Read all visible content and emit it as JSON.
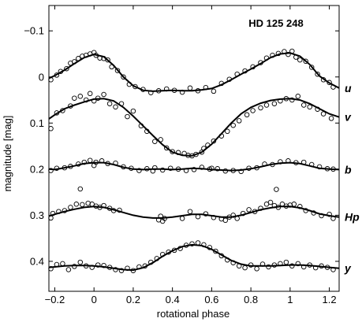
{
  "chart_data": {
    "type": "scatter",
    "title": "HD 125 248",
    "xlabel": "rotational phase",
    "ylabel": "magnitude [mag]",
    "xlim": [
      -0.23,
      1.25
    ],
    "ylim": [
      0.465,
      -0.155
    ],
    "y_inverted": true,
    "grid": false,
    "xticks": [
      -0.2,
      0,
      0.2,
      0.4,
      0.6,
      0.8,
      1,
      1.2
    ],
    "xtick_labels": [
      "−0.2",
      "0",
      "0.2",
      "0.4",
      "0.6",
      "0.8",
      "1",
      "1.2"
    ],
    "yticks": [
      -0.1,
      0,
      0.1,
      0.2,
      0.3,
      0.4
    ],
    "ytick_labels": [
      "−0.1",
      "0",
      "0.1",
      "0.2",
      "0.3",
      "0.4"
    ],
    "series": [
      {
        "name": "u",
        "fit_curve": {
          "x": [
            -0.23,
            -0.2,
            -0.15,
            -0.1,
            -0.05,
            0,
            0.05,
            0.1,
            0.15,
            0.2,
            0.25,
            0.3,
            0.35,
            0.4,
            0.45,
            0.5,
            0.55,
            0.6,
            0.65,
            0.7,
            0.75,
            0.8,
            0.85,
            0.9,
            0.95,
            1,
            1.05,
            1.1,
            1.15,
            1.2,
            1.25
          ],
          "y": [
            0.003,
            -0.003,
            -0.015,
            -0.029,
            -0.042,
            -0.049,
            -0.044,
            -0.025,
            0.0,
            0.019,
            0.029,
            0.031,
            0.03,
            0.029,
            0.03,
            0.03,
            0.028,
            0.025,
            0.017,
            0.006,
            -0.006,
            -0.017,
            -0.029,
            -0.042,
            -0.05,
            -0.052,
            -0.045,
            -0.027,
            -0.002,
            0.013,
            0.024
          ]
        },
        "observations": {
          "x": [
            -0.22,
            -0.19,
            -0.17,
            -0.14,
            -0.12,
            -0.1,
            -0.08,
            -0.06,
            -0.04,
            -0.02,
            0.0,
            0.01,
            0.03,
            0.05,
            0.07,
            0.09,
            0.12,
            0.15,
            0.18,
            0.21,
            0.25,
            0.29,
            0.33,
            0.37,
            0.41,
            0.45,
            0.49,
            0.53,
            0.57,
            0.61,
            0.65,
            0.69,
            0.73,
            0.77,
            0.81,
            0.85,
            0.88,
            0.91,
            0.94,
            0.97,
            0.99,
            1.01,
            1.03,
            1.05,
            1.08,
            1.11,
            1.14,
            1.17,
            1.2,
            1.22
          ],
          "y": [
            0.006,
            -0.004,
            -0.012,
            -0.018,
            -0.03,
            -0.033,
            -0.04,
            -0.045,
            -0.047,
            -0.05,
            -0.053,
            -0.047,
            -0.041,
            -0.04,
            -0.037,
            -0.022,
            -0.014,
            0.0,
            0.016,
            0.021,
            0.027,
            0.034,
            0.03,
            0.026,
            0.029,
            0.033,
            0.024,
            0.03,
            0.023,
            0.031,
            0.014,
            0.005,
            -0.006,
            -0.013,
            -0.022,
            -0.031,
            -0.041,
            -0.047,
            -0.051,
            -0.055,
            -0.049,
            -0.056,
            -0.043,
            -0.037,
            -0.034,
            -0.021,
            -0.006,
            0.006,
            0.012,
            0.022
          ]
        }
      },
      {
        "name": "v",
        "fit_curve": {
          "x": [
            -0.23,
            -0.2,
            -0.15,
            -0.1,
            -0.05,
            0,
            0.05,
            0.1,
            0.15,
            0.2,
            0.25,
            0.3,
            0.35,
            0.4,
            0.45,
            0.5,
            0.55,
            0.6,
            0.65,
            0.7,
            0.75,
            0.8,
            0.85,
            0.9,
            0.95,
            1,
            1.05,
            1.1,
            1.15,
            1.2,
            1.25
          ],
          "y": [
            0.091,
            0.082,
            0.069,
            0.061,
            0.054,
            0.048,
            0.047,
            0.052,
            0.066,
            0.085,
            0.106,
            0.127,
            0.147,
            0.163,
            0.17,
            0.171,
            0.163,
            0.146,
            0.123,
            0.1,
            0.08,
            0.066,
            0.057,
            0.051,
            0.048,
            0.047,
            0.05,
            0.058,
            0.069,
            0.08,
            0.087
          ]
        },
        "observations": {
          "x": [
            -0.22,
            -0.19,
            -0.16,
            -0.12,
            -0.1,
            -0.07,
            -0.04,
            -0.02,
            0.0,
            0.02,
            0.05,
            0.08,
            0.11,
            0.14,
            0.17,
            0.2,
            0.24,
            0.27,
            0.31,
            0.34,
            0.37,
            0.4,
            0.43,
            0.46,
            0.48,
            0.5,
            0.52,
            0.55,
            0.58,
            0.61,
            0.65,
            0.68,
            0.71,
            0.74,
            0.78,
            0.81,
            0.85,
            0.88,
            0.92,
            0.95,
            0.98,
            1.01,
            1.04,
            1.07,
            1.1,
            1.14,
            1.17,
            1.21,
            -0.27,
            0.56
          ],
          "y": [
            0.112,
            0.078,
            0.073,
            0.063,
            0.046,
            0.042,
            0.05,
            0.036,
            0.052,
            0.046,
            0.038,
            0.058,
            0.065,
            0.058,
            0.086,
            0.074,
            0.106,
            0.118,
            0.14,
            0.136,
            0.154,
            0.162,
            0.164,
            0.166,
            0.17,
            0.171,
            0.168,
            0.163,
            0.148,
            0.139,
            0.128,
            0.118,
            0.105,
            0.095,
            0.082,
            0.073,
            0.067,
            0.061,
            0.058,
            0.052,
            0.047,
            0.05,
            0.042,
            0.061,
            0.065,
            0.07,
            0.08,
            0.09,
            0.116,
            0.155
          ]
        }
      },
      {
        "name": "b",
        "fit_curve": {
          "x": [
            -0.23,
            -0.2,
            -0.15,
            -0.1,
            -0.05,
            0,
            0.05,
            0.1,
            0.15,
            0.2,
            0.25,
            0.3,
            0.35,
            0.4,
            0.45,
            0.5,
            0.55,
            0.6,
            0.65,
            0.7,
            0.75,
            0.8,
            0.85,
            0.9,
            0.95,
            1,
            1.05,
            1.1,
            1.15,
            1.2,
            1.25
          ],
          "y": [
            0.2,
            0.201,
            0.197,
            0.193,
            0.188,
            0.186,
            0.186,
            0.19,
            0.196,
            0.2,
            0.201,
            0.2,
            0.2,
            0.201,
            0.2,
            0.198,
            0.199,
            0.201,
            0.202,
            0.203,
            0.202,
            0.199,
            0.195,
            0.19,
            0.187,
            0.186,
            0.188,
            0.193,
            0.198,
            0.2,
            0.201
          ]
        },
        "observations": {
          "x": [
            -0.22,
            -0.19,
            -0.15,
            -0.12,
            -0.08,
            -0.05,
            -0.02,
            0.01,
            0.04,
            0.07,
            0.11,
            0.15,
            0.19,
            0.23,
            0.27,
            0.31,
            0.35,
            0.39,
            0.43,
            0.47,
            0.51,
            0.55,
            0.59,
            0.63,
            0.67,
            0.71,
            0.75,
            0.79,
            0.83,
            0.87,
            0.91,
            0.95,
            0.99,
            1.03,
            1.07,
            1.11,
            1.15,
            1.19,
            1.22,
            -0.07,
            0.93,
            0.0,
            0.3,
            0.6
          ],
          "y": [
            0.203,
            0.198,
            0.197,
            0.194,
            0.189,
            0.185,
            0.181,
            0.185,
            0.182,
            0.188,
            0.187,
            0.195,
            0.198,
            0.203,
            0.199,
            0.197,
            0.202,
            0.198,
            0.2,
            0.203,
            0.201,
            0.196,
            0.2,
            0.199,
            0.204,
            0.203,
            0.205,
            0.198,
            0.197,
            0.189,
            0.19,
            0.184,
            0.182,
            0.186,
            0.185,
            0.19,
            0.195,
            0.199,
            0.2,
            0.243,
            0.244,
            0.192,
            0.204,
            0.198
          ]
        }
      },
      {
        "name": "Hp",
        "fit_curve": {
          "x": [
            -0.23,
            -0.2,
            -0.15,
            -0.1,
            -0.05,
            0,
            0.05,
            0.1,
            0.15,
            0.2,
            0.25,
            0.3,
            0.35,
            0.4,
            0.45,
            0.5,
            0.55,
            0.6,
            0.65,
            0.7,
            0.75,
            0.8,
            0.85,
            0.9,
            0.95,
            1,
            1.05,
            1.1,
            1.15,
            1.2,
            1.25
          ],
          "y": [
            0.302,
            0.298,
            0.292,
            0.287,
            0.283,
            0.281,
            0.283,
            0.288,
            0.294,
            0.3,
            0.304,
            0.306,
            0.306,
            0.304,
            0.301,
            0.298,
            0.298,
            0.301,
            0.304,
            0.304,
            0.3,
            0.294,
            0.288,
            0.284,
            0.281,
            0.281,
            0.284,
            0.29,
            0.297,
            0.301,
            0.304
          ]
        },
        "observations": {
          "x": [
            -0.22,
            -0.21,
            -0.18,
            -0.15,
            -0.12,
            -0.09,
            -0.06,
            -0.03,
            -0.01,
            0.01,
            0.03,
            0.05,
            0.08,
            0.1,
            0.13,
            0.33,
            0.34,
            0.35,
            0.36,
            0.45,
            0.49,
            0.53,
            0.57,
            0.61,
            0.65,
            0.67,
            0.69,
            0.71,
            0.73,
            0.76,
            0.79,
            0.82,
            0.85,
            0.88,
            0.9,
            0.92,
            0.94,
            0.96,
            0.98,
            1.0,
            1.02,
            1.05,
            1.08,
            1.12,
            1.16,
            1.2,
            1.22
          ],
          "y": [
            0.306,
            0.296,
            0.292,
            0.29,
            0.283,
            0.276,
            0.277,
            0.274,
            0.276,
            0.28,
            0.283,
            0.279,
            0.285,
            0.29,
            0.289,
            0.31,
            0.302,
            0.313,
            0.307,
            0.307,
            0.292,
            0.303,
            0.297,
            0.305,
            0.308,
            0.311,
            0.304,
            0.3,
            0.307,
            0.296,
            0.288,
            0.292,
            0.285,
            0.276,
            0.272,
            0.279,
            0.283,
            0.276,
            0.28,
            0.278,
            0.276,
            0.281,
            0.29,
            0.295,
            0.301,
            0.298,
            0.307
          ]
        }
      },
      {
        "name": "y",
        "fit_curve": {
          "x": [
            -0.23,
            -0.2,
            -0.15,
            -0.1,
            -0.05,
            0,
            0.05,
            0.1,
            0.15,
            0.2,
            0.25,
            0.3,
            0.35,
            0.4,
            0.45,
            0.5,
            0.55,
            0.6,
            0.65,
            0.7,
            0.75,
            0.8,
            0.85,
            0.9,
            0.95,
            1,
            1.05,
            1.1,
            1.15,
            1.2,
            1.25
          ],
          "y": [
            0.413,
            0.412,
            0.41,
            0.409,
            0.409,
            0.41,
            0.412,
            0.415,
            0.418,
            0.419,
            0.414,
            0.403,
            0.389,
            0.377,
            0.368,
            0.364,
            0.366,
            0.374,
            0.386,
            0.398,
            0.406,
            0.41,
            0.41,
            0.41,
            0.409,
            0.408,
            0.408,
            0.409,
            0.411,
            0.413,
            0.415
          ]
        },
        "observations": {
          "x": [
            -0.22,
            -0.19,
            -0.16,
            -0.13,
            -0.1,
            -0.07,
            -0.04,
            -0.01,
            0.02,
            0.05,
            0.08,
            0.11,
            0.14,
            0.17,
            0.2,
            0.23,
            0.26,
            0.29,
            0.32,
            0.35,
            0.38,
            0.41,
            0.44,
            0.47,
            0.5,
            0.53,
            0.56,
            0.59,
            0.62,
            0.65,
            0.68,
            0.71,
            0.74,
            0.77,
            0.8,
            0.83,
            0.86,
            0.89,
            0.92,
            0.95,
            0.98,
            1.01,
            1.04,
            1.07,
            1.1,
            1.13,
            1.16,
            1.19,
            1.22
          ],
          "y": [
            0.416,
            0.407,
            0.405,
            0.418,
            0.411,
            0.402,
            0.41,
            0.413,
            0.408,
            0.409,
            0.413,
            0.418,
            0.42,
            0.415,
            0.42,
            0.412,
            0.41,
            0.402,
            0.394,
            0.385,
            0.38,
            0.376,
            0.372,
            0.365,
            0.362,
            0.36,
            0.364,
            0.37,
            0.378,
            0.388,
            0.397,
            0.403,
            0.41,
            0.414,
            0.408,
            0.416,
            0.406,
            0.412,
            0.408,
            0.405,
            0.402,
            0.41,
            0.405,
            0.412,
            0.408,
            0.414,
            0.41,
            0.413,
            0.418
          ]
        }
      }
    ]
  },
  "colors": {
    "marker_stroke": "#000000",
    "curve": "#000000",
    "axis": "#000000",
    "background": "#ffffff"
  }
}
